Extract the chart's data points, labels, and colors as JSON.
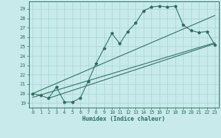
{
  "title": "",
  "xlabel": "Humidex (Indice chaleur)",
  "ylabel": "",
  "bg_color": "#c8eaea",
  "grid_color": "#a8d8d8",
  "line_color": "#2d6b5e",
  "xlim": [
    -0.5,
    23.5
  ],
  "ylim": [
    18.5,
    29.8
  ],
  "xticks": [
    0,
    1,
    2,
    3,
    4,
    5,
    6,
    7,
    8,
    9,
    10,
    11,
    12,
    13,
    14,
    15,
    16,
    17,
    18,
    19,
    20,
    21,
    22,
    23
  ],
  "yticks": [
    19,
    20,
    21,
    22,
    23,
    24,
    25,
    26,
    27,
    28,
    29
  ],
  "main_line_x": [
    0,
    1,
    2,
    3,
    4,
    5,
    6,
    7,
    8,
    9,
    10,
    11,
    12,
    13,
    14,
    15,
    16,
    17,
    18,
    19,
    20,
    21,
    22,
    23
  ],
  "main_line_y": [
    20.0,
    19.8,
    19.5,
    20.7,
    19.1,
    19.1,
    19.5,
    21.3,
    23.2,
    24.8,
    26.4,
    25.3,
    26.6,
    27.5,
    28.8,
    29.2,
    29.3,
    29.2,
    29.3,
    27.3,
    26.7,
    26.5,
    26.6,
    25.2
  ],
  "trend_line1_x": [
    0,
    23
  ],
  "trend_line1_y": [
    20.0,
    28.3
  ],
  "trend_line2_x": [
    0,
    23
  ],
  "trend_line2_y": [
    19.6,
    25.4
  ],
  "trend_line3_x": [
    2,
    23
  ],
  "trend_line3_y": [
    19.5,
    25.3
  ]
}
